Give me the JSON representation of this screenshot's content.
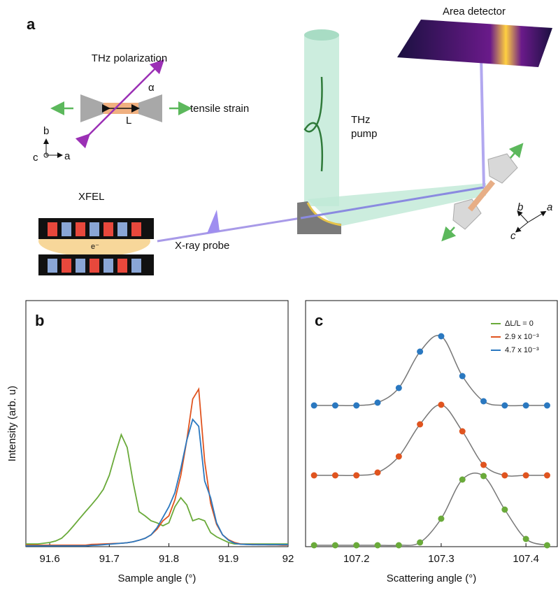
{
  "panel_a": {
    "label": "a",
    "polarization_title": "THz polarization",
    "alpha": "α",
    "length": "L",
    "strain": "tensile strain",
    "axis_b": "b",
    "axis_c": "c",
    "axis_a": "a",
    "xfel": "XFEL",
    "electron": "e⁻",
    "probe": "X-ray probe",
    "thz": "THz",
    "pump": "pump",
    "detector": "Area detector",
    "crystal_b": "b",
    "crystal_a": "a",
    "crystal_c": "c"
  },
  "chart_data": [
    {
      "type": "line",
      "panel_label": "b",
      "x_label": "Sample angle (°)",
      "y_label": "Intensity (arb. u)",
      "xlim": [
        91.56,
        92.0
      ],
      "xticks": [
        91.6,
        91.7,
        91.8,
        91.9,
        92
      ],
      "ylim": [
        0,
        1
      ],
      "x": [
        91.56,
        91.57,
        91.58,
        91.59,
        91.6,
        91.61,
        91.62,
        91.63,
        91.64,
        91.65,
        91.66,
        91.67,
        91.68,
        91.69,
        91.7,
        91.71,
        91.72,
        91.73,
        91.74,
        91.75,
        91.76,
        91.77,
        91.78,
        91.79,
        91.8,
        91.81,
        91.82,
        91.83,
        91.84,
        91.85,
        91.86,
        91.87,
        91.88,
        91.89,
        91.9,
        91.91,
        91.92,
        91.93,
        91.94,
        91.95,
        91.96,
        91.97,
        91.98,
        91.99,
        92.0
      ],
      "series": [
        {
          "color": "#6aaa3a",
          "values": [
            0.011,
            0.011,
            0.011,
            0.014,
            0.017,
            0.023,
            0.034,
            0.057,
            0.085,
            0.114,
            0.142,
            0.17,
            0.199,
            0.233,
            0.29,
            0.375,
            0.455,
            0.403,
            0.261,
            0.142,
            0.125,
            0.105,
            0.097,
            0.085,
            0.097,
            0.162,
            0.199,
            0.17,
            0.105,
            0.114,
            0.105,
            0.057,
            0.04,
            0.028,
            0.017,
            0.011,
            0.011,
            0.011,
            0.011,
            0.011,
            0.011,
            0.011,
            0.011,
            0.011,
            0.011
          ]
        },
        {
          "color": "#e0541f",
          "values": [
            0.006,
            0.006,
            0.006,
            0.006,
            0.006,
            0.006,
            0.006,
            0.006,
            0.006,
            0.006,
            0.006,
            0.009,
            0.01,
            0.011,
            0.012,
            0.013,
            0.014,
            0.016,
            0.02,
            0.026,
            0.034,
            0.048,
            0.071,
            0.105,
            0.125,
            0.19,
            0.29,
            0.432,
            0.6,
            0.64,
            0.347,
            0.176,
            0.091,
            0.048,
            0.028,
            0.017,
            0.011,
            0.009,
            0.009,
            0.008,
            0.008,
            0.007,
            0.007,
            0.006,
            0.006
          ]
        },
        {
          "color": "#2a78c0",
          "values": [
            0.003,
            0.003,
            0.003,
            0.003,
            0.003,
            0.003,
            0.003,
            0.003,
            0.003,
            0.003,
            0.003,
            0.005,
            0.006,
            0.008,
            0.01,
            0.012,
            0.014,
            0.016,
            0.02,
            0.026,
            0.034,
            0.048,
            0.077,
            0.119,
            0.162,
            0.219,
            0.318,
            0.432,
            0.517,
            0.489,
            0.267,
            0.199,
            0.097,
            0.048,
            0.026,
            0.014,
            0.01,
            0.009,
            0.008,
            0.008,
            0.008,
            0.008,
            0.008,
            0.008,
            0.008
          ]
        }
      ]
    },
    {
      "type": "scatter",
      "panel_label": "c",
      "x_label": "Scattering angle (°)",
      "fit_curve": true,
      "fit_color": "#777777",
      "xlim": [
        107.14,
        107.437
      ],
      "xticks": [
        107.2,
        107.3,
        107.4
      ],
      "ylim": [
        -0.02,
        3.5
      ],
      "legend": "upper right",
      "x": [
        107.15,
        107.175,
        107.2,
        107.225,
        107.25,
        107.275,
        107.3,
        107.325,
        107.35,
        107.375,
        107.4,
        107.425
      ],
      "series": [
        {
          "name": "ΔL/L = 0",
          "color": "#6aaa3a",
          "values": [
            0,
            0,
            0,
            0,
            0,
            0.04,
            0.38,
            0.94,
            0.99,
            0.51,
            0.09,
            0
          ]
        },
        {
          "name": "2.9 x 10⁻³",
          "color": "#e0541f",
          "values": [
            1,
            1,
            1,
            1.04,
            1.27,
            1.73,
            2.01,
            1.63,
            1.15,
            1,
            1,
            1
          ]
        },
        {
          "name": "4.7 x 10⁻³",
          "color": "#2a78c0",
          "values": [
            2,
            2,
            2,
            2.04,
            2.25,
            2.77,
            2.99,
            2.42,
            2.06,
            2,
            2,
            2
          ]
        }
      ]
    }
  ]
}
